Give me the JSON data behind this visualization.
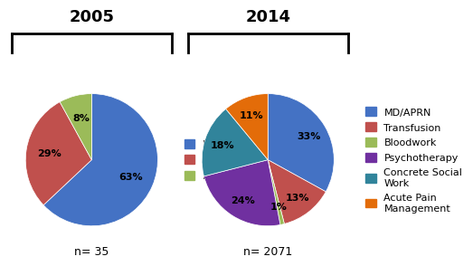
{
  "pie1_labels": [
    "MD",
    "Transfusion",
    "Bloodwork"
  ],
  "pie1_values": [
    63,
    29,
    8
  ],
  "pie1_colors": [
    "#4472C4",
    "#C0504D",
    "#9BBB59"
  ],
  "pie1_title": "2005",
  "pie1_n": "n= 35",
  "pie1_startangle": 90,
  "pie2_labels": [
    "MD/APRN",
    "Transfusion",
    "Bloodwork",
    "Psychotherapy",
    "Concrete Social Work",
    "Acute Pain Management"
  ],
  "pie2_values": [
    33,
    13,
    1,
    24,
    18,
    11
  ],
  "pie2_colors": [
    "#4472C4",
    "#C0504D",
    "#9BBB59",
    "#7030A0",
    "#31849B",
    "#E36C09"
  ],
  "pie2_title": "2014",
  "pie2_n": "n= 2071",
  "pie2_startangle": 90,
  "pie1_legend_labels": [
    "MD",
    "Transfusion",
    "Bloodwork"
  ],
  "pie1_legend_colors": [
    "#4472C4",
    "#C0504D",
    "#9BBB59"
  ],
  "pie2_legend_labels": [
    "MD/APRN",
    "Transfusion",
    "Bloodwork",
    "Psychotherapy",
    "Concrete Social\nWork",
    "Acute Pain\nManagement"
  ],
  "pie2_legend_colors": [
    "#4472C4",
    "#C0504D",
    "#9BBB59",
    "#7030A0",
    "#31849B",
    "#E36C09"
  ],
  "title_fontsize": 13,
  "label_fontsize": 8,
  "n_fontsize": 9,
  "legend_fontsize": 8,
  "background_color": "#ffffff"
}
